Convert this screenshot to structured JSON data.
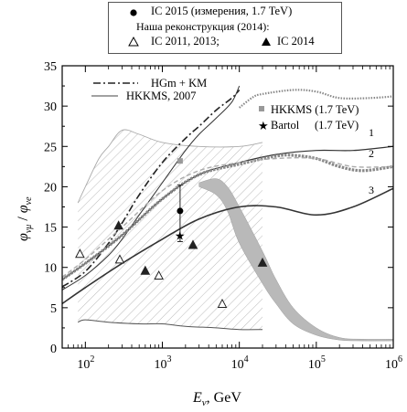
{
  "legend_top": {
    "ic2015": "IC 2015 (измерения, 1.7 TeV)",
    "recon_header": "Наша реконструкция (2014):",
    "ic2011": "IC 2011, 2013;",
    "ic2014": "IC 2014"
  },
  "legend_inner": {
    "hgm_km": "HGm + KM",
    "hkkms2007": "HKKMS, 2007",
    "hkkms_17": "HKKMS (1.7 TeV)",
    "bartol": "Bartol",
    "bartol_energy": "(1.7 TeV)"
  },
  "curve_labels": [
    "1",
    "2",
    "3"
  ],
  "chart_data": {
    "type": "line",
    "xscale": "log",
    "xlim": [
      50,
      1000000
    ],
    "ylim": [
      0,
      35
    ],
    "xlabel": "E",
    "xlabel_sub": "ν",
    "xlabel_unit": ", GeV",
    "ylabel": "φ",
    "ylabel_sub_num": "νμ",
    "ylabel_sub_den": "νe",
    "x_ticks": [
      {
        "v": 100,
        "base": "10",
        "exp": "2"
      },
      {
        "v": 1000,
        "base": "10",
        "exp": "3"
      },
      {
        "v": 10000,
        "base": "10",
        "exp": "4"
      },
      {
        "v": 100000,
        "base": "10",
        "exp": "5"
      },
      {
        "v": 1000000,
        "base": "10",
        "exp": "6"
      }
    ],
    "y_ticks": [
      0,
      5,
      10,
      15,
      20,
      25,
      30,
      35
    ],
    "series": [
      {
        "name": "HGm + KM",
        "style": "dash-dot",
        "points": [
          [
            50,
            7.6
          ],
          [
            100,
            9.5
          ],
          [
            200,
            13
          ],
          [
            300,
            15.5
          ],
          [
            500,
            19
          ],
          [
            1000,
            23
          ],
          [
            2000,
            26
          ],
          [
            3000,
            27.5
          ],
          [
            5000,
            29.5
          ],
          [
            8000,
            31
          ],
          [
            10000,
            32
          ]
        ]
      },
      {
        "name": "HKKMS, 2007",
        "style": "thin",
        "points": [
          [
            50,
            7.2
          ],
          [
            100,
            9
          ],
          [
            200,
            11.5
          ],
          [
            300,
            13.5
          ],
          [
            500,
            16.5
          ],
          [
            1000,
            20.5
          ],
          [
            2000,
            24.5
          ],
          [
            3000,
            26.5
          ],
          [
            5000,
            28.5
          ],
          [
            8000,
            30.5
          ],
          [
            10000,
            32.5
          ]
        ]
      },
      {
        "name": "",
        "style": "dotted",
        "points": [
          [
            10000,
            29.8
          ],
          [
            15000,
            31.1
          ],
          [
            20000,
            31.5
          ],
          [
            50000,
            32
          ],
          [
            100000,
            31.8
          ],
          [
            200000,
            31
          ],
          [
            500000,
            31
          ],
          [
            1000000,
            31.2
          ]
        ]
      },
      {
        "name": "",
        "style": "solid-1",
        "points": [
          [
            50,
            8.5
          ],
          [
            100,
            10.5
          ],
          [
            300,
            14
          ],
          [
            1000,
            18.5
          ],
          [
            3000,
            21.5
          ],
          [
            10000,
            23
          ],
          [
            30000,
            24
          ],
          [
            100000,
            24.5
          ],
          [
            300000,
            24.5
          ],
          [
            1000000,
            25
          ]
        ]
      },
      {
        "name": "",
        "style": "squares-2",
        "points": [
          [
            50,
            8.5
          ],
          [
            100,
            10.5
          ],
          [
            300,
            14
          ],
          [
            1000,
            18.5
          ],
          [
            3000,
            21.5
          ],
          [
            10000,
            22.8
          ],
          [
            30000,
            23.8
          ],
          [
            50000,
            23.9
          ],
          [
            100000,
            23.5
          ],
          [
            200000,
            22.5
          ],
          [
            400000,
            22
          ],
          [
            1000000,
            22.5
          ]
        ]
      },
      {
        "name": "",
        "style": "dashed-gray",
        "points": [
          [
            50,
            8.8
          ],
          [
            100,
            11
          ],
          [
            300,
            15
          ],
          [
            1000,
            19.5
          ],
          [
            3000,
            22
          ],
          [
            10000,
            23
          ],
          [
            30000,
            23.5
          ],
          [
            100000,
            23.5
          ],
          [
            300000,
            22.5
          ],
          [
            1000000,
            22.5
          ]
        ]
      },
      {
        "name": "",
        "style": "solid-3",
        "points": [
          [
            50,
            5.5
          ],
          [
            100,
            7.5
          ],
          [
            300,
            10.5
          ],
          [
            1000,
            13.5
          ],
          [
            3000,
            16
          ],
          [
            10000,
            17.5
          ],
          [
            30000,
            17.5
          ],
          [
            100000,
            16.5
          ],
          [
            300000,
            17.5
          ],
          [
            1000000,
            19.8
          ]
        ]
      }
    ],
    "band_gray": {
      "upper": [
        [
          3000,
          20.5
        ],
        [
          5000,
          21
        ],
        [
          7000,
          20
        ],
        [
          10000,
          17.5
        ],
        [
          20000,
          12
        ],
        [
          30000,
          8.5
        ],
        [
          50000,
          5
        ],
        [
          100000,
          2.5
        ],
        [
          200000,
          1.3
        ],
        [
          400000,
          1.1
        ],
        [
          1000000,
          1.1
        ]
      ],
      "lower": [
        [
          1000000,
          0.9
        ],
        [
          400000,
          0.9
        ],
        [
          200000,
          1
        ],
        [
          100000,
          1.6
        ],
        [
          50000,
          3
        ],
        [
          30000,
          5.5
        ],
        [
          20000,
          8
        ],
        [
          10000,
          13
        ],
        [
          7000,
          17
        ],
        [
          5000,
          19
        ],
        [
          3000,
          20
        ]
      ]
    },
    "band_hatched": {
      "upper": [
        [
          80,
          18
        ],
        [
          100,
          20
        ],
        [
          150,
          23.5
        ],
        [
          200,
          25
        ],
        [
          300,
          27
        ],
        [
          500,
          26.5
        ],
        [
          1000,
          25.5
        ],
        [
          3000,
          25
        ],
        [
          10000,
          25
        ],
        [
          20000,
          25.5
        ]
      ],
      "lower": [
        [
          20000,
          2.3
        ],
        [
          10000,
          2.3
        ],
        [
          5000,
          2.5
        ],
        [
          2000,
          2.7
        ],
        [
          1000,
          3
        ],
        [
          500,
          3
        ],
        [
          200,
          3.2
        ],
        [
          100,
          3.5
        ],
        [
          80,
          3.2
        ]
      ]
    },
    "gray_upper_line": [
      [
        80,
        18
      ],
      [
        100,
        20
      ],
      [
        150,
        23.5
      ],
      [
        200,
        25
      ],
      [
        300,
        27
      ],
      [
        500,
        26.5
      ],
      [
        1000,
        25.5
      ],
      [
        3000,
        25
      ],
      [
        10000,
        25
      ],
      [
        20000,
        25.5
      ]
    ],
    "gray_lower_line": [
      [
        80,
        3.2
      ],
      [
        100,
        3.5
      ],
      [
        200,
        3.2
      ],
      [
        500,
        3
      ],
      [
        1000,
        3
      ],
      [
        2000,
        2.7
      ],
      [
        5000,
        2.5
      ],
      [
        10000,
        2.3
      ],
      [
        20000,
        2.3
      ]
    ],
    "markers_ic2011_open_triangles": [
      [
        85,
        11.7
      ],
      [
        280,
        11
      ],
      [
        900,
        9
      ],
      [
        6000,
        5.5
      ]
    ],
    "markers_ic2014_filled_triangles": [
      [
        270,
        15.2
      ],
      [
        600,
        9.6
      ],
      [
        2500,
        12.8
      ],
      [
        20000,
        10.6
      ]
    ],
    "ic2015_point": {
      "x": 1700,
      "y": 17,
      "yerr_low": 13.2,
      "yerr_high": 20.2
    },
    "hkkms_point": {
      "x": 1700,
      "y": 23.2
    },
    "bartol_point": {
      "x": 1700,
      "y": 14
    }
  }
}
